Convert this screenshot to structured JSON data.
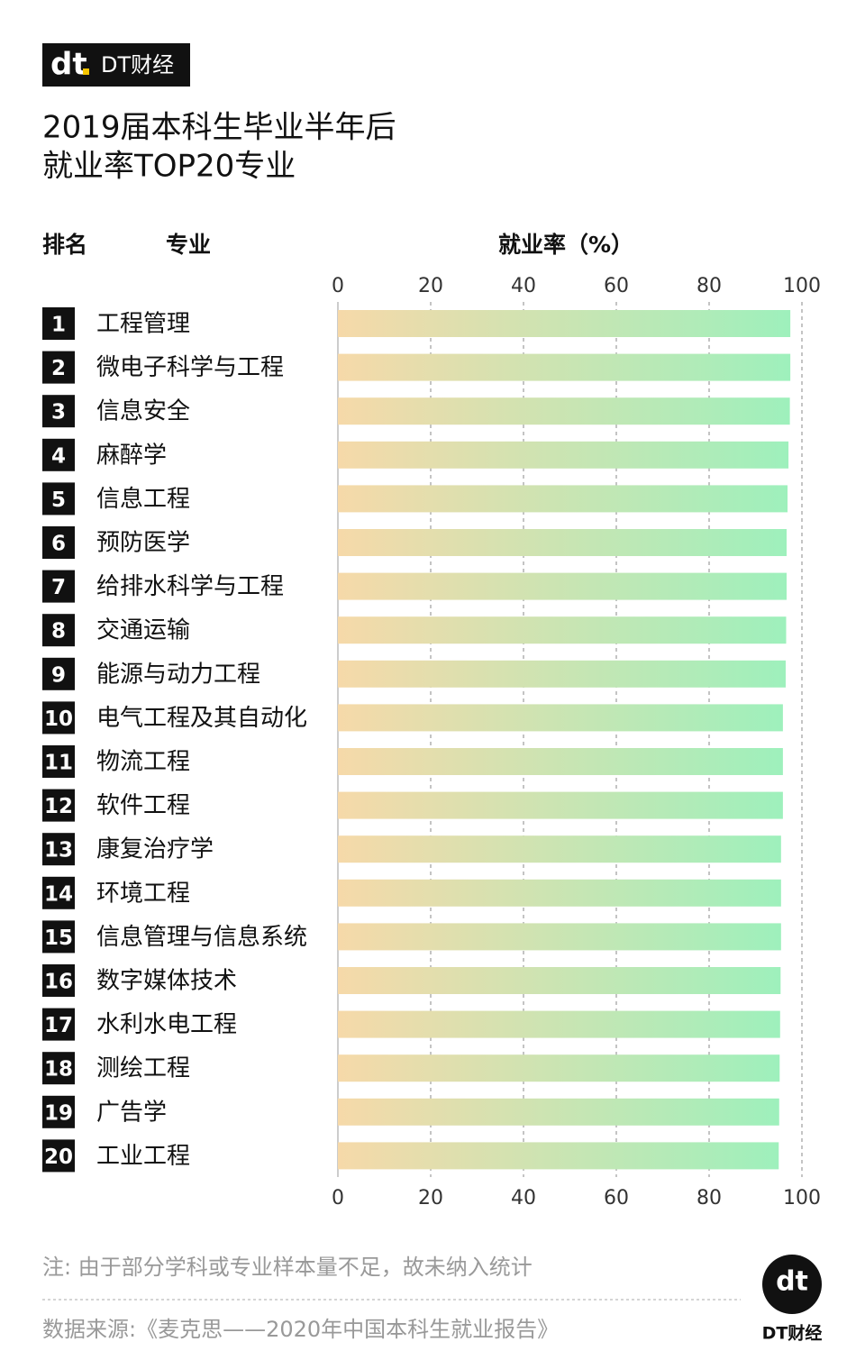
{
  "logo_mark": "dt",
  "logo_text": "DT财经",
  "chart_data": {
    "type": "bar",
    "orientation": "horizontal",
    "title": [
      "2019届本科生毕业半年后",
      "就业率TOP20专业"
    ],
    "rank_header": "排名",
    "category_header": "专业",
    "value_header": "就业率（%）",
    "ranks": [
      1,
      2,
      3,
      4,
      5,
      6,
      7,
      8,
      9,
      10,
      11,
      12,
      13,
      14,
      15,
      16,
      17,
      18,
      19,
      20
    ],
    "categories": [
      "工程管理",
      "微电子科学与工程",
      "信息安全",
      "麻醉学",
      "信息工程",
      "预防医学",
      "给排水科学与工程",
      "交通运输",
      "能源与动力工程",
      "电气工程及其自动化",
      "物流工程",
      "软件工程",
      "康复治疗学",
      "环境工程",
      "信息管理与信息系统",
      "数字媒体技术",
      "水利水电工程",
      "测绘工程",
      "广告学",
      "工业工程"
    ],
    "values": [
      97.5,
      97.5,
      97.4,
      97.1,
      96.9,
      96.7,
      96.7,
      96.6,
      96.5,
      95.9,
      95.9,
      95.9,
      95.5,
      95.5,
      95.5,
      95.4,
      95.3,
      95.2,
      95.1,
      95.0
    ],
    "colors": [
      "#f6d9a9",
      "#9ef0bc"
    ],
    "xlim": [
      0,
      100
    ],
    "xticks": [
      0,
      20,
      40,
      60,
      80,
      100
    ],
    "grid": true,
    "note": "注: 由于部分学科或专业样本量不足，故未纳入统计",
    "source": "数据来源:《麦克思——2020年中国本科生就业报告》"
  }
}
